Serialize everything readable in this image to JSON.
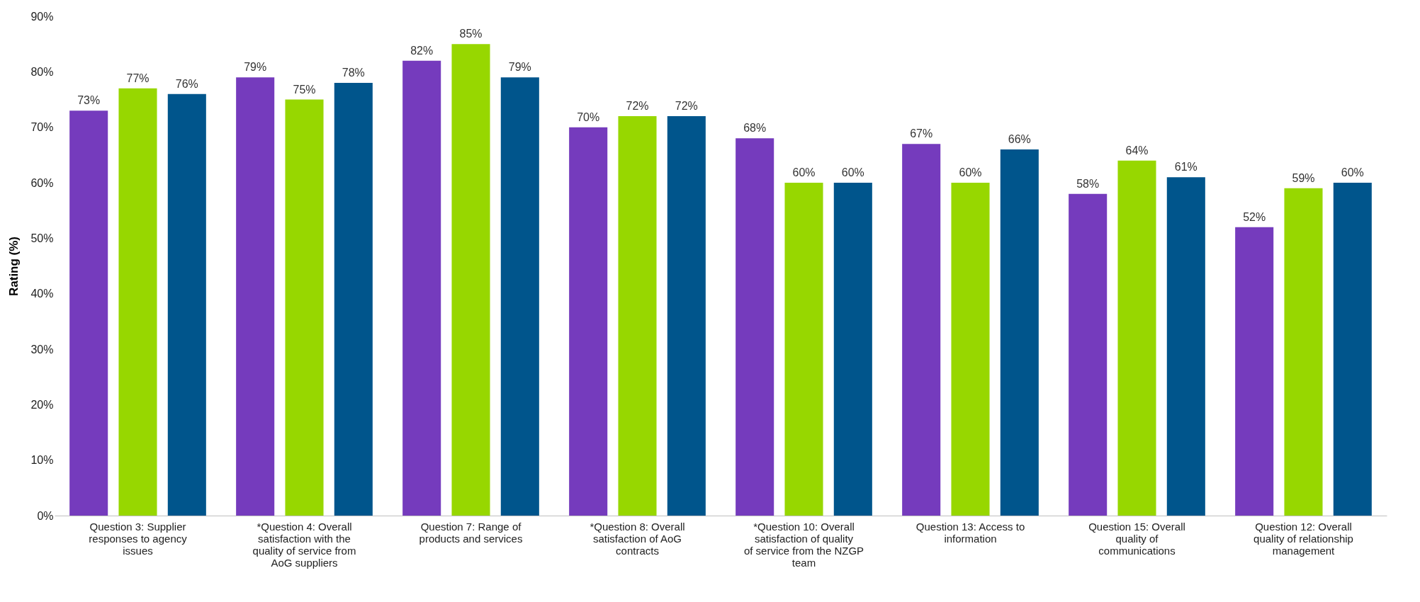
{
  "chart_data": {
    "type": "bar",
    "ylabel": "Rating (%)",
    "categories": [
      "Question 3: Supplier responses to agency issues",
      "*Question 4: Overall satisfaction with the quality of service from AoG suppliers",
      "Question 7: Range of products and services",
      "*Question 8: Overall satisfaction of AoG contracts",
      "*Question 10: Overall satisfaction of quality of service from the NZGP team",
      "Question 13: Access to information",
      "Question 15: Overall quality of communications",
      "Question 12: Overall quality of relationship management"
    ],
    "series": [
      {
        "color": "#753bbd",
        "values": [
          73,
          79,
          82,
          70,
          68,
          67,
          58,
          52
        ],
        "value_labels": [
          "73%",
          "79%",
          "82%",
          "70%",
          "68%",
          "67%",
          "58%",
          "52%"
        ]
      },
      {
        "color": "#97d700",
        "values": [
          77,
          75,
          85,
          72,
          60,
          60,
          64,
          59
        ],
        "value_labels": [
          "77%",
          "75%",
          "85%",
          "72%",
          "60%",
          "60%",
          "64%",
          "59%"
        ]
      },
      {
        "color": "#00558c",
        "values": [
          76,
          78,
          79,
          72,
          60,
          66,
          61,
          60
        ],
        "value_labels": [
          "76%",
          "78%",
          "79%",
          "72%",
          "60%",
          "66%",
          "61%",
          "60%"
        ]
      }
    ],
    "ylim": [
      0,
      90
    ],
    "yticks": [
      {
        "value": 0,
        "label": "0%"
      },
      {
        "value": 10,
        "label": "10%"
      },
      {
        "value": 20,
        "label": "20%"
      },
      {
        "value": 30,
        "label": "30%"
      },
      {
        "value": 40,
        "label": "40%"
      },
      {
        "value": 50,
        "label": "50%"
      },
      {
        "value": 60,
        "label": "60%"
      },
      {
        "value": 70,
        "label": "70%"
      },
      {
        "value": 80,
        "label": "80%"
      },
      {
        "value": 90,
        "label": "90%"
      }
    ],
    "grid": false,
    "legend": false
  }
}
